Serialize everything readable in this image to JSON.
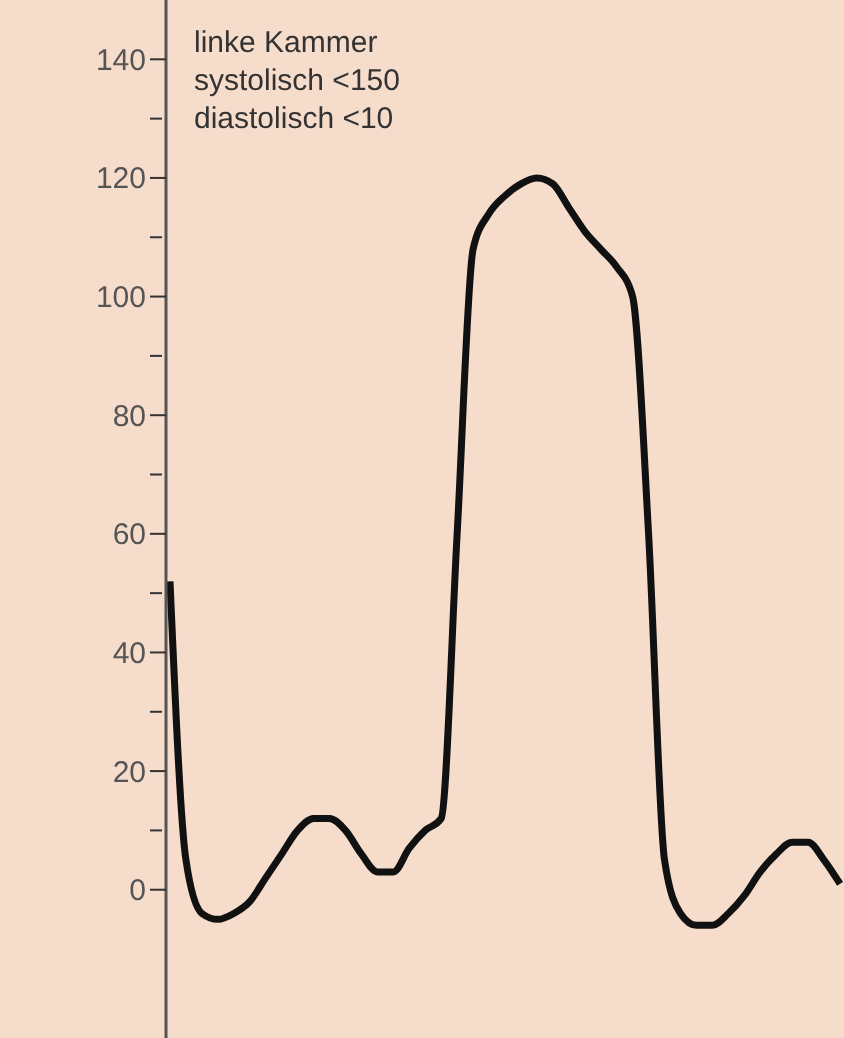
{
  "chart_data": {
    "type": "line",
    "categories": [
      null,
      null,
      null,
      null,
      null,
      null,
      null,
      null,
      null,
      null,
      null,
      null,
      null,
      null,
      null,
      null,
      null,
      null,
      null,
      null,
      null,
      null,
      null,
      null,
      null,
      null,
      null,
      null,
      null,
      null,
      null,
      null,
      null,
      null,
      null,
      null,
      null,
      null,
      null,
      null,
      null,
      null,
      null
    ],
    "series": [
      {
        "color": "#111111",
        "values": [
          52,
          5,
          -4,
          -5,
          -4,
          -2,
          2,
          6,
          10,
          12,
          12,
          10,
          6,
          3,
          3,
          7,
          10,
          12,
          60,
          108,
          114,
          117,
          119,
          120,
          119,
          115,
          111,
          108,
          105,
          100,
          60,
          5,
          -4,
          -6,
          -6,
          -4,
          -1,
          3,
          6,
          8,
          8,
          5,
          1
        ]
      }
    ],
    "ylim": [
      -25,
      150
    ],
    "yticks": [
      0,
      {
        "value": 10,
        "label": null
      },
      20,
      {
        "value": 30,
        "label": null
      },
      40,
      {
        "value": 50,
        "label": null
      },
      60,
      {
        "value": 70,
        "label": null
      },
      80,
      {
        "value": 90,
        "label": null
      },
      100,
      {
        "value": 110,
        "label": null
      },
      120,
      {
        "value": 130,
        "label": null
      },
      140
    ],
    "annotations": [
      "linke Kammer",
      "systolisch <150",
      "diastolisch <10"
    ],
    "grid": false,
    "legend": false,
    "marker": "none",
    "line_style": "solid"
  }
}
